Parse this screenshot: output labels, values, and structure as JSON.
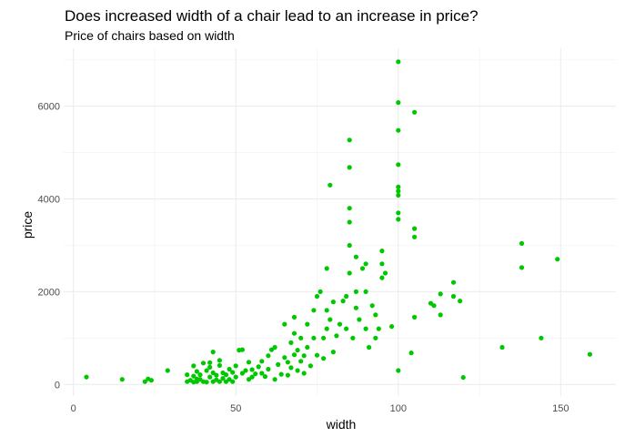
{
  "chart_data": {
    "type": "scatter",
    "title": "Does increased width of a chair lead to an increase in price?",
    "subtitle": "Price of chairs based on width",
    "xlabel": "width",
    "ylabel": "price",
    "xlim": [
      -3,
      167
    ],
    "ylim": [
      -250,
      7250
    ],
    "xticks": [
      0,
      50,
      100,
      150
    ],
    "yticks": [
      0,
      2000,
      4000,
      6000
    ],
    "xtick_labels": [
      "0",
      "50",
      "100",
      "150"
    ],
    "ytick_labels": [
      "0",
      "2000",
      "4000",
      "6000"
    ],
    "grid": true,
    "point_color": "#00c800",
    "points": [
      [
        4,
        160
      ],
      [
        15,
        110
      ],
      [
        22,
        60
      ],
      [
        23,
        120
      ],
      [
        24,
        90
      ],
      [
        29,
        300
      ],
      [
        35,
        60
      ],
      [
        35,
        210
      ],
      [
        36,
        90
      ],
      [
        37,
        50
      ],
      [
        37,
        180
      ],
      [
        37,
        400
      ],
      [
        38,
        60
      ],
      [
        38,
        120
      ],
      [
        38,
        280
      ],
      [
        39,
        110
      ],
      [
        39,
        210
      ],
      [
        40,
        60
      ],
      [
        40,
        460
      ],
      [
        41,
        50
      ],
      [
        41,
        300
      ],
      [
        42,
        160
      ],
      [
        42,
        370
      ],
      [
        42,
        470
      ],
      [
        43,
        60
      ],
      [
        43,
        250
      ],
      [
        43,
        700
      ],
      [
        44,
        100
      ],
      [
        44,
        200
      ],
      [
        45,
        60
      ],
      [
        45,
        410
      ],
      [
        45,
        520
      ],
      [
        46,
        130
      ],
      [
        46,
        250
      ],
      [
        47,
        60
      ],
      [
        47,
        210
      ],
      [
        48,
        110
      ],
      [
        48,
        330
      ],
      [
        49,
        60
      ],
      [
        49,
        260
      ],
      [
        50,
        160
      ],
      [
        50,
        400
      ],
      [
        51,
        740
      ],
      [
        52,
        240
      ],
      [
        52,
        750
      ],
      [
        53,
        300
      ],
      [
        54,
        110
      ],
      [
        54,
        480
      ],
      [
        55,
        160
      ],
      [
        55,
        320
      ],
      [
        56,
        230
      ],
      [
        57,
        380
      ],
      [
        58,
        240
      ],
      [
        58,
        500
      ],
      [
        59,
        170
      ],
      [
        60,
        330
      ],
      [
        60,
        620
      ],
      [
        61,
        750
      ],
      [
        62,
        110
      ],
      [
        62,
        800
      ],
      [
        63,
        430
      ],
      [
        64,
        220
      ],
      [
        65,
        580
      ],
      [
        65,
        1300
      ],
      [
        66,
        200
      ],
      [
        66,
        480
      ],
      [
        67,
        360
      ],
      [
        67,
        900
      ],
      [
        68,
        640
      ],
      [
        68,
        1100
      ],
      [
        68,
        1450
      ],
      [
        69,
        300
      ],
      [
        69,
        740
      ],
      [
        70,
        500
      ],
      [
        70,
        1000
      ],
      [
        71,
        240
      ],
      [
        71,
        620
      ],
      [
        72,
        800
      ],
      [
        72,
        1300
      ],
      [
        73,
        400
      ],
      [
        74,
        1000
      ],
      [
        74,
        1600
      ],
      [
        75,
        630
      ],
      [
        75,
        1900
      ],
      [
        76,
        2000
      ],
      [
        77,
        560
      ],
      [
        77,
        1000
      ],
      [
        78,
        1200
      ],
      [
        78,
        1600
      ],
      [
        78,
        2500
      ],
      [
        79,
        1400
      ],
      [
        79,
        4300
      ],
      [
        80,
        700
      ],
      [
        80,
        1780
      ],
      [
        81,
        1050
      ],
      [
        82,
        1300
      ],
      [
        83,
        1800
      ],
      [
        84,
        1200
      ],
      [
        84,
        1900
      ],
      [
        85,
        2400
      ],
      [
        85,
        3000
      ],
      [
        85,
        3500
      ],
      [
        85,
        3800
      ],
      [
        85,
        4680
      ],
      [
        85,
        5270
      ],
      [
        86,
        1000
      ],
      [
        87,
        1650
      ],
      [
        87,
        2000
      ],
      [
        87,
        2750
      ],
      [
        88,
        1400
      ],
      [
        89,
        2500
      ],
      [
        90,
        1200
      ],
      [
        90,
        2000
      ],
      [
        90,
        2600
      ],
      [
        91,
        800
      ],
      [
        92,
        1700
      ],
      [
        93,
        1000
      ],
      [
        93,
        1500
      ],
      [
        94,
        1200
      ],
      [
        95,
        2300
      ],
      [
        95,
        2600
      ],
      [
        95,
        2880
      ],
      [
        96,
        2400
      ],
      [
        98,
        1250
      ],
      [
        100,
        300
      ],
      [
        100,
        3560
      ],
      [
        100,
        3700
      ],
      [
        100,
        4080
      ],
      [
        100,
        4170
      ],
      [
        100,
        4260
      ],
      [
        100,
        4740
      ],
      [
        100,
        5480
      ],
      [
        100,
        6080
      ],
      [
        100,
        6960
      ],
      [
        104,
        680
      ],
      [
        105,
        1450
      ],
      [
        105,
        3180
      ],
      [
        105,
        3360
      ],
      [
        105,
        5870
      ],
      [
        110,
        1750
      ],
      [
        111,
        1700
      ],
      [
        113,
        1500
      ],
      [
        113,
        1950
      ],
      [
        117,
        1900
      ],
      [
        117,
        2200
      ],
      [
        119,
        1800
      ],
      [
        120,
        150
      ],
      [
        132,
        800
      ],
      [
        138,
        2520
      ],
      [
        138,
        3040
      ],
      [
        144,
        1000
      ],
      [
        149,
        2700
      ],
      [
        159,
        650
      ]
    ]
  }
}
